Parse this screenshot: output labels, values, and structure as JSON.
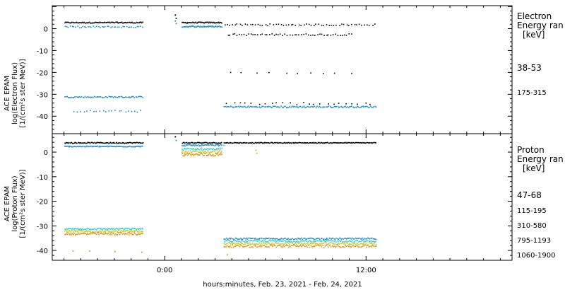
{
  "chart_data": [
    {
      "type": "scatter",
      "panel": "electron",
      "ylabel": [
        "ACE EPAM",
        "log(Electron Flux)",
        "[1/(cm²s ster MeV)]"
      ],
      "ylim": [
        -48,
        10.5
      ],
      "yticks": [
        0,
        -10,
        -20,
        -30,
        -40
      ],
      "legend_title": [
        "Electron",
        "Energy ran",
        "[keV]"
      ],
      "series": [
        {
          "name": "38-53",
          "color": "#000000",
          "segments": [
            {
              "x0": -6.0,
              "x1": -1.3,
              "y": 3,
              "jit": 0.25,
              "n": 90
            },
            {
              "x0": 1.0,
              "x1": 3.4,
              "y": 3,
              "jit": 0.25,
              "n": 50
            },
            {
              "x0": 3.5,
              "x1": 12.6,
              "y": 2,
              "jit": 0.4,
              "n": 60
            },
            {
              "x0": 3.7,
              "x1": 11.2,
              "y": -2.5,
              "jit": 0.4,
              "n": 55
            },
            {
              "x0": 3.7,
              "x1": 11.5,
              "y": -20,
              "jit": 0.3,
              "n": 10
            },
            {
              "x0": 3.6,
              "x1": 12.5,
              "y": -34,
              "jit": 0.5,
              "n": 24
            }
          ],
          "points": [
            [
              0.6,
              6.5
            ],
            [
              0.65,
              5.0
            ]
          ]
        },
        {
          "name": "175-315",
          "color": "#1b8bd6",
          "segments": [
            {
              "x0": -6.0,
              "x1": -1.3,
              "y": 1,
              "jit": 0.4,
              "n": 45
            },
            {
              "x0": 1.0,
              "x1": 3.4,
              "y": 1.2,
              "jit": 0.3,
              "n": 50
            },
            {
              "x0": -6.0,
              "x1": -1.3,
              "y": -31,
              "jit": 0.3,
              "n": 70
            },
            {
              "x0": -5.5,
              "x1": -1.3,
              "y": -37.5,
              "jit": 0.4,
              "n": 22
            },
            {
              "x0": 3.5,
              "x1": 12.6,
              "y": -35.5,
              "jit": 0.35,
              "n": 140
            }
          ],
          "points": [
            [
              0.6,
              3.8
            ],
            [
              0.65,
              2.6
            ]
          ]
        }
      ]
    },
    {
      "type": "scatter",
      "panel": "proton",
      "ylabel": [
        "ACE EPAM",
        "log(Proton Flux)",
        "[1/(cm²s ster MeV)]"
      ],
      "ylim": [
        -44,
        7.5
      ],
      "yticks": [
        0,
        -10,
        -20,
        -30,
        -40
      ],
      "legend_title": [
        "Proton",
        "Energy ran",
        "[keV]"
      ],
      "series": [
        {
          "name": "47-68",
          "color": "#000000",
          "segments": [
            {
              "x0": -6.0,
              "x1": -1.3,
              "y": 4,
              "jit": 0.2,
              "n": 90
            },
            {
              "x0": 1.0,
              "x1": 3.4,
              "y": 4,
              "jit": 0.2,
              "n": 45
            },
            {
              "x0": 3.5,
              "x1": 12.6,
              "y": 4,
              "jit": 0.15,
              "n": 180
            }
          ],
          "points": [
            [
              0.6,
              6.5
            ]
          ]
        },
        {
          "name": "115-195",
          "color": "#1b8bd6",
          "segments": [
            {
              "x0": -6.0,
              "x1": -1.3,
              "y": 2.5,
              "jit": 0.2,
              "n": 90
            },
            {
              "x0": 1.0,
              "x1": 3.4,
              "y": 3,
              "jit": 0.3,
              "n": 45
            },
            {
              "x0": 3.5,
              "x1": 12.6,
              "y": -35,
              "jit": 0.3,
              "n": 150
            }
          ],
          "points": [
            [
              0.65,
              5.0
            ]
          ]
        },
        {
          "name": "310-580",
          "color": "#33d1d1",
          "segments": [
            {
              "x0": -6.0,
              "x1": -1.3,
              "y": -31,
              "jit": 0.3,
              "n": 90
            },
            {
              "x0": 1.0,
              "x1": 3.4,
              "y": 1.5,
              "jit": 0.4,
              "n": 45
            },
            {
              "x0": 3.5,
              "x1": 12.6,
              "y": -36,
              "jit": 0.35,
              "n": 150
            }
          ],
          "points": [
            [
              3.5,
              3.0
            ]
          ]
        },
        {
          "name": "795-1193",
          "color": "#c8c81e",
          "segments": [
            {
              "x0": -6.0,
              "x1": -1.3,
              "y": -32,
              "jit": 0.4,
              "n": 90
            },
            {
              "x0": 1.0,
              "x1": 3.4,
              "y": 0.3,
              "jit": 0.5,
              "n": 50
            },
            {
              "x0": 3.5,
              "x1": 12.6,
              "y": -37,
              "jit": 0.4,
              "n": 150
            }
          ],
          "points": [
            [
              5.4,
              1.0
            ],
            [
              5.45,
              -0.2
            ],
            [
              3.8,
              -38.5
            ]
          ]
        },
        {
          "name": "1060-1900",
          "color": "#e8901a",
          "segments": [
            {
              "x0": -6.0,
              "x1": -1.3,
              "y": -33,
              "jit": 0.5,
              "n": 90
            },
            {
              "x0": 1.0,
              "x1": 3.4,
              "y": -0.8,
              "jit": 0.6,
              "n": 50
            },
            {
              "x0": 3.5,
              "x1": 12.6,
              "y": -38,
              "jit": 0.5,
              "n": 150
            }
          ],
          "points": [
            [
              -5.5,
              -40
            ],
            [
              -4.5,
              -40
            ],
            [
              -3.0,
              -40.2
            ],
            [
              -1.4,
              -40.5
            ],
            [
              3.7,
              -41.5
            ]
          ]
        }
      ]
    }
  ],
  "x_axis": {
    "range_hours": [
      -6.7,
      20.7
    ],
    "ticks": [
      {
        "value": 0,
        "label": "0:00"
      },
      {
        "value": 12,
        "label": "12:00"
      }
    ],
    "minor_step": 1,
    "label": "hours:minutes, Feb. 23, 2021 - Feb. 24, 2021"
  }
}
